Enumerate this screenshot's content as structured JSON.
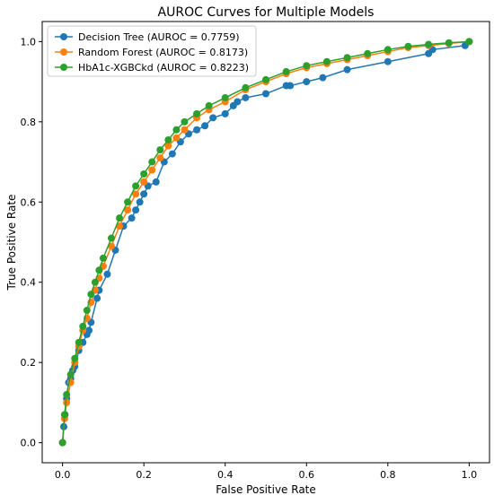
{
  "chart_data": {
    "type": "line",
    "title": "AUROC Curves for Multiple Models",
    "xlabel": "False Positive Rate",
    "ylabel": "True Positive Rate",
    "xlim": [
      -0.05,
      1.05
    ],
    "ylim": [
      -0.05,
      1.05
    ],
    "xticks": [
      "0.0",
      "0.2",
      "0.4",
      "0.6",
      "0.8",
      "1.0"
    ],
    "yticks": [
      "0.0",
      "0.2",
      "0.4",
      "0.6",
      "0.8",
      "1.0"
    ],
    "grid": false,
    "legend_position": "top-left",
    "series": [
      {
        "name": "Decision Tree (AUROC = 0.7759)",
        "color": "#1f77b4",
        "x": [
          0,
          0.003,
          0.006,
          0.01,
          0.015,
          0.02,
          0.025,
          0.03,
          0.04,
          0.05,
          0.06,
          0.065,
          0.07,
          0.085,
          0.09,
          0.11,
          0.13,
          0.15,
          0.17,
          0.18,
          0.19,
          0.2,
          0.21,
          0.23,
          0.25,
          0.27,
          0.29,
          0.31,
          0.33,
          0.35,
          0.37,
          0.4,
          0.42,
          0.43,
          0.45,
          0.5,
          0.55,
          0.56,
          0.6,
          0.64,
          0.7,
          0.8,
          0.9,
          0.91,
          0.99,
          1.0
        ],
        "y": [
          0,
          0.04,
          0.07,
          0.11,
          0.15,
          0.16,
          0.18,
          0.19,
          0.23,
          0.25,
          0.27,
          0.28,
          0.3,
          0.36,
          0.38,
          0.42,
          0.48,
          0.54,
          0.56,
          0.58,
          0.6,
          0.62,
          0.64,
          0.65,
          0.7,
          0.72,
          0.75,
          0.77,
          0.78,
          0.79,
          0.81,
          0.82,
          0.84,
          0.85,
          0.86,
          0.87,
          0.89,
          0.89,
          0.9,
          0.91,
          0.93,
          0.95,
          0.97,
          0.98,
          0.99,
          1.0
        ]
      },
      {
        "name": "Random Forest (AUROC = 0.8173)",
        "color": "#ff7f0e",
        "x": [
          0,
          0.005,
          0.01,
          0.02,
          0.03,
          0.04,
          0.05,
          0.06,
          0.07,
          0.08,
          0.09,
          0.1,
          0.12,
          0.14,
          0.16,
          0.18,
          0.2,
          0.22,
          0.24,
          0.26,
          0.28,
          0.3,
          0.33,
          0.36,
          0.4,
          0.45,
          0.5,
          0.55,
          0.6,
          0.65,
          0.7,
          0.75,
          0.8,
          0.85,
          0.9,
          0.95,
          1.0
        ],
        "y": [
          0,
          0.06,
          0.1,
          0.15,
          0.2,
          0.24,
          0.28,
          0.31,
          0.35,
          0.38,
          0.41,
          0.44,
          0.49,
          0.54,
          0.58,
          0.62,
          0.65,
          0.68,
          0.71,
          0.74,
          0.76,
          0.78,
          0.81,
          0.83,
          0.85,
          0.88,
          0.9,
          0.92,
          0.935,
          0.945,
          0.955,
          0.965,
          0.975,
          0.985,
          0.99,
          0.995,
          1.0
        ]
      },
      {
        "name": "HbA1c-XGBCkd (AUROC = 0.8223)",
        "color": "#2ca02c",
        "x": [
          0,
          0.005,
          0.01,
          0.02,
          0.03,
          0.04,
          0.05,
          0.06,
          0.07,
          0.08,
          0.09,
          0.1,
          0.12,
          0.14,
          0.16,
          0.18,
          0.2,
          0.22,
          0.24,
          0.26,
          0.28,
          0.3,
          0.33,
          0.36,
          0.4,
          0.45,
          0.5,
          0.55,
          0.6,
          0.65,
          0.7,
          0.75,
          0.8,
          0.85,
          0.9,
          0.95,
          1.0
        ],
        "y": [
          0,
          0.07,
          0.12,
          0.17,
          0.21,
          0.25,
          0.29,
          0.33,
          0.37,
          0.4,
          0.43,
          0.46,
          0.51,
          0.56,
          0.6,
          0.64,
          0.67,
          0.7,
          0.73,
          0.755,
          0.78,
          0.8,
          0.82,
          0.84,
          0.86,
          0.885,
          0.905,
          0.925,
          0.94,
          0.95,
          0.96,
          0.97,
          0.98,
          0.988,
          0.993,
          0.997,
          1.0
        ]
      }
    ]
  }
}
